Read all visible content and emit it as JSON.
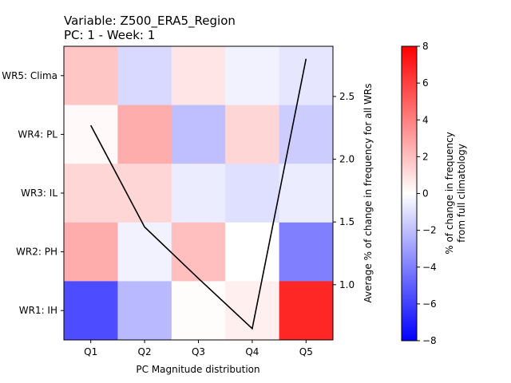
{
  "chart_data": {
    "type": "heatmap",
    "title": "Variable: Z500_ERA5_Region",
    "subtitle": "PC: 1 - Week: 1",
    "xlabel": "PC Magnitude distribution",
    "x_categories": [
      "Q1",
      "Q2",
      "Q3",
      "Q4",
      "Q5"
    ],
    "y_categories": [
      "WR5: Clima",
      "WR4: PL",
      "WR3: IL",
      "WR2: PH",
      "WR1: IH"
    ],
    "values": [
      [
        1.8,
        -1.2,
        0.8,
        -0.4,
        -0.8
      ],
      [
        0.2,
        2.6,
        -2.0,
        1.3,
        -1.6
      ],
      [
        1.3,
        1.3,
        -0.6,
        -1.0,
        -0.6
      ],
      [
        2.6,
        -0.4,
        2.0,
        0.0,
        -4.0
      ],
      [
        -5.6,
        -2.2,
        0.1,
        0.5,
        6.8
      ]
    ],
    "colorbar": {
      "label_line1": "% of change in frequency",
      "label_line2": "from full climatology",
      "range": [
        -8,
        8
      ],
      "ticks": [
        "8",
        "6",
        "4",
        "2",
        "0",
        "−2",
        "−4",
        "−6",
        "−8"
      ],
      "colors": {
        "low": "#0000ff",
        "mid": "#ffffff",
        "high": "#ff0000"
      }
    },
    "line_series": {
      "ylabel": "Average % of change in frequency for all WRs",
      "x": [
        "Q1",
        "Q2",
        "Q3",
        "Q4",
        "Q5"
      ],
      "y": [
        2.27,
        1.46,
        1.05,
        0.65,
        2.8
      ],
      "ylim": [
        0.56,
        2.9
      ],
      "yticks": [
        "1.0",
        "1.5",
        "2.0",
        "2.5"
      ],
      "color": "#000000"
    }
  }
}
